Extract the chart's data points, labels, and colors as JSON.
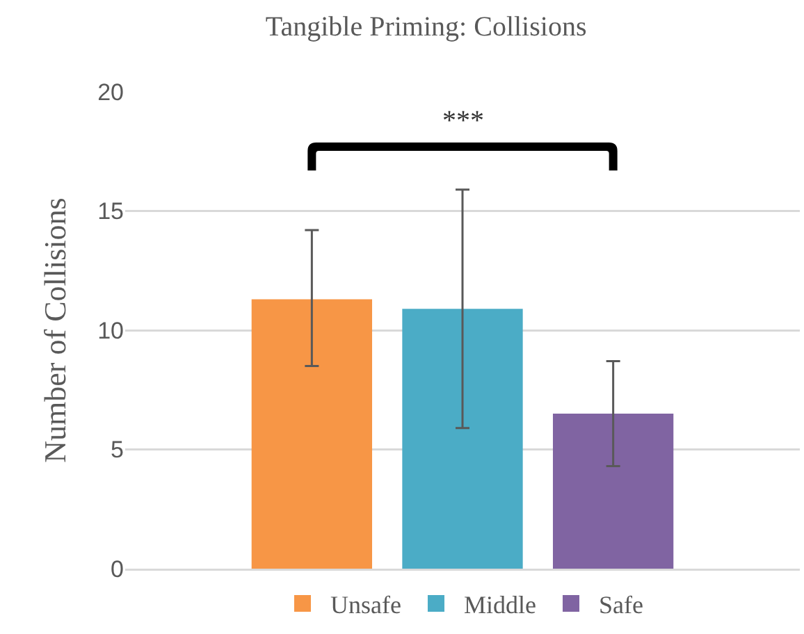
{
  "chart_data": {
    "type": "bar",
    "title": "Tangible Priming: Collisions",
    "ylabel": "Number of Collisions",
    "categories": [
      null
    ],
    "series": [
      {
        "name": "Unsafe",
        "color": "#f79646",
        "values": [
          11.3
        ],
        "errors": [
          [
            8.5,
            14.2
          ]
        ]
      },
      {
        "name": "Middle",
        "color": "#4bacc6",
        "values": [
          10.9
        ],
        "errors": [
          [
            5.9,
            15.9
          ]
        ]
      },
      {
        "name": "Safe",
        "color": "#8064a2",
        "values": [
          6.5
        ],
        "errors": [
          [
            4.3,
            8.7
          ]
        ]
      }
    ],
    "ylim": [
      0,
      20
    ],
    "yticks": [
      0,
      5,
      10,
      15,
      20
    ],
    "grid": "y",
    "legend": "bottom",
    "annotations": [
      "***"
    ]
  }
}
